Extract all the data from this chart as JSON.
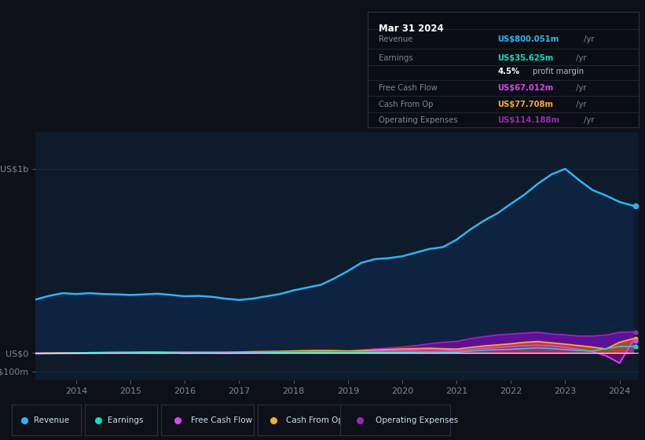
{
  "background_color": "#0d1117",
  "plot_bg_color": "#0d1b2a",
  "title_date": "Mar 31 2024",
  "info_box_bg": "#0a0e14",
  "info_box_border": "#2a3040",
  "x_years": [
    2013.25,
    2013.5,
    2013.75,
    2014.0,
    2014.25,
    2014.5,
    2014.75,
    2015.0,
    2015.25,
    2015.5,
    2015.75,
    2016.0,
    2016.25,
    2016.5,
    2016.75,
    2017.0,
    2017.25,
    2017.5,
    2017.75,
    2018.0,
    2018.25,
    2018.5,
    2018.75,
    2019.0,
    2019.25,
    2019.5,
    2019.75,
    2020.0,
    2020.25,
    2020.5,
    2020.75,
    2021.0,
    2021.25,
    2021.5,
    2021.75,
    2022.0,
    2022.25,
    2022.5,
    2022.75,
    2023.0,
    2023.25,
    2023.5,
    2023.75,
    2024.0,
    2024.25
  ],
  "revenue": [
    290,
    310,
    325,
    320,
    325,
    320,
    318,
    315,
    318,
    322,
    315,
    308,
    310,
    305,
    295,
    288,
    295,
    308,
    320,
    340,
    355,
    370,
    405,
    445,
    490,
    510,
    515,
    525,
    545,
    565,
    575,
    615,
    670,
    718,
    758,
    810,
    860,
    920,
    970,
    1000,
    940,
    885,
    855,
    820,
    800
  ],
  "earnings": [
    -3,
    -2,
    -1,
    0,
    2,
    1,
    0,
    1,
    1,
    2,
    1,
    -1,
    0,
    0,
    -1,
    0,
    0,
    1,
    2,
    2,
    3,
    4,
    3,
    2,
    3,
    4,
    4,
    4,
    5,
    6,
    5,
    5,
    10,
    15,
    18,
    20,
    24,
    28,
    24,
    18,
    14,
    10,
    24,
    35,
    36
  ],
  "free_cash_flow": [
    -5,
    -3,
    -2,
    -2,
    -1,
    0,
    1,
    1,
    1,
    2,
    1,
    1,
    1,
    1,
    1,
    2,
    2,
    3,
    4,
    5,
    6,
    7,
    5,
    3,
    6,
    9,
    11,
    12,
    15,
    18,
    15,
    12,
    18,
    25,
    30,
    35,
    40,
    42,
    38,
    30,
    20,
    8,
    -15,
    -55,
    67
  ],
  "cash_from_op": [
    -2,
    -1,
    0,
    0,
    2,
    3,
    4,
    4,
    5,
    5,
    4,
    4,
    4,
    4,
    4,
    5,
    7,
    8,
    9,
    11,
    13,
    14,
    13,
    11,
    13,
    16,
    19,
    22,
    24,
    26,
    23,
    21,
    30,
    38,
    44,
    50,
    58,
    62,
    55,
    48,
    40,
    32,
    22,
    58,
    78
  ],
  "op_expenses": [
    0,
    0,
    0,
    1,
    1,
    1,
    1,
    2,
    2,
    2,
    2,
    2,
    2,
    2,
    2,
    2,
    2,
    3,
    3,
    3,
    4,
    5,
    6,
    9,
    16,
    22,
    27,
    32,
    40,
    50,
    58,
    63,
    78,
    88,
    98,
    103,
    108,
    112,
    103,
    98,
    92,
    92,
    97,
    112,
    114
  ],
  "ylim": [
    -150,
    1200
  ],
  "y_ticks": [
    -100,
    0,
    1000
  ],
  "y_labels": [
    "-US$100m",
    "US$0",
    "US$1b"
  ],
  "x_ticks": [
    2014,
    2015,
    2016,
    2017,
    2018,
    2019,
    2020,
    2021,
    2022,
    2023,
    2024
  ],
  "revenue_color": "#29b6f6",
  "earnings_color": "#00e5c0",
  "fcf_color": "#e040fb",
  "cashop_color": "#ffa726",
  "opex_color": "#9c27b0",
  "legend_items": [
    {
      "label": "Revenue",
      "color": "#29b6f6"
    },
    {
      "label": "Earnings",
      "color": "#00e5c0"
    },
    {
      "label": "Free Cash Flow",
      "color": "#e040fb"
    },
    {
      "label": "Cash From Op",
      "color": "#ffa726"
    },
    {
      "label": "Operating Expenses",
      "color": "#9c27b0"
    }
  ],
  "info_rows": [
    {
      "label": "Revenue",
      "value": "US$800.051m",
      "suffix": " /yr",
      "color": "#29b6f6"
    },
    {
      "label": "Earnings",
      "value": "US$35.625m",
      "suffix": " /yr",
      "color": "#00e5c0"
    },
    {
      "label": "",
      "value": "4.5%",
      "suffix": " profit margin",
      "color": "white"
    },
    {
      "label": "Free Cash Flow",
      "value": "US$67.012m",
      "suffix": " /yr",
      "color": "#e040fb"
    },
    {
      "label": "Cash From Op",
      "value": "US$77.708m",
      "suffix": " /yr",
      "color": "#ffa726"
    },
    {
      "label": "Operating Expenses",
      "value": "US$114.188m",
      "suffix": " /yr",
      "color": "#9c27b0"
    }
  ]
}
